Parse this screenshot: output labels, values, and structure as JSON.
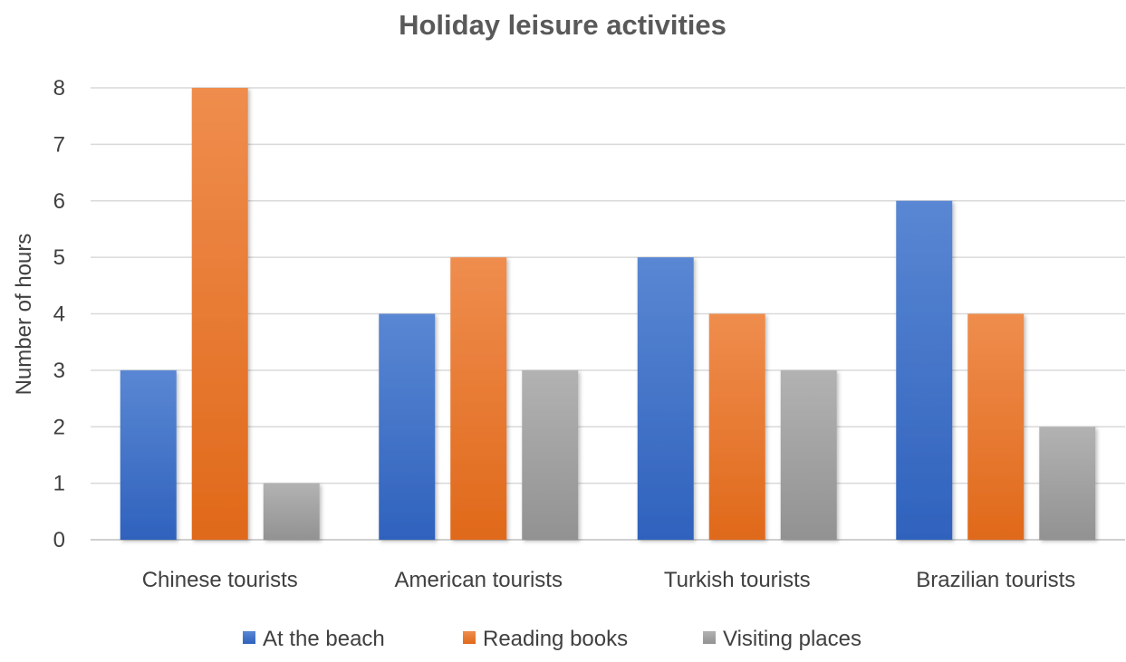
{
  "chart_data": {
    "type": "bar",
    "title": "Holiday leisure activities",
    "xlabel": "",
    "ylabel": "Number of hours",
    "categories": [
      "Chinese tourists",
      "American tourists",
      "Turkish tourists",
      "Brazilian tourists"
    ],
    "series": [
      {
        "name": "At the beach",
        "values": [
          3,
          4,
          5,
          6
        ],
        "color": "#4472c4"
      },
      {
        "name": "Reading books",
        "values": [
          8,
          5,
          4,
          4
        ],
        "color": "#ed7d31"
      },
      {
        "name": "Visiting places",
        "values": [
          1,
          3,
          3,
          2
        ],
        "color": "#a5a5a5"
      }
    ],
    "ylim": [
      0,
      8
    ],
    "yticks": [
      "0",
      "1",
      "2",
      "3",
      "4",
      "5",
      "6",
      "7",
      "8"
    ],
    "grid": true,
    "legend_position": "bottom"
  }
}
